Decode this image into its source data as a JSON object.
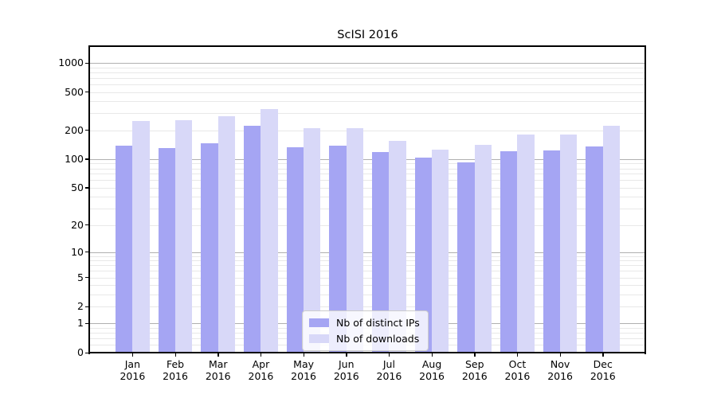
{
  "chart_data": {
    "type": "bar",
    "title": "ScISI 2016",
    "yscale": "log1p",
    "ylim": [
      0,
      1490
    ],
    "xlabel": "",
    "ylabel": "",
    "grid": true,
    "legend_position": "lower center",
    "y_ticks": [
      0,
      1,
      2,
      5,
      10,
      20,
      50,
      100,
      200,
      500,
      1000
    ],
    "y_tick_labels": [
      "0",
      "1",
      "2",
      "5",
      "10",
      "20",
      "50",
      "100",
      "200",
      "500",
      "1000"
    ],
    "categories": [
      "Jan",
      "Feb",
      "Mar",
      "Apr",
      "May",
      "Jun",
      "Jul",
      "Aug",
      "Sep",
      "Oct",
      "Nov",
      "Dec"
    ],
    "category_year": "2016",
    "series": [
      {
        "name": "Nb of distinct IPs",
        "color": "#a5a5f3",
        "values": [
          137,
          130,
          146,
          221,
          132,
          138,
          119,
          104,
          92,
          121,
          124,
          136
        ]
      },
      {
        "name": "Nb of downloads",
        "color": "#d8d8f8",
        "values": [
          251,
          256,
          282,
          335,
          212,
          211,
          156,
          126,
          140,
          181,
          180,
          224
        ]
      }
    ]
  },
  "colors": {
    "background": "#ffffff",
    "major_grid": "#b0b0b0",
    "minor_grid": "#e8e8e8",
    "axis": "#000000",
    "legend_border": "#cccccc"
  }
}
